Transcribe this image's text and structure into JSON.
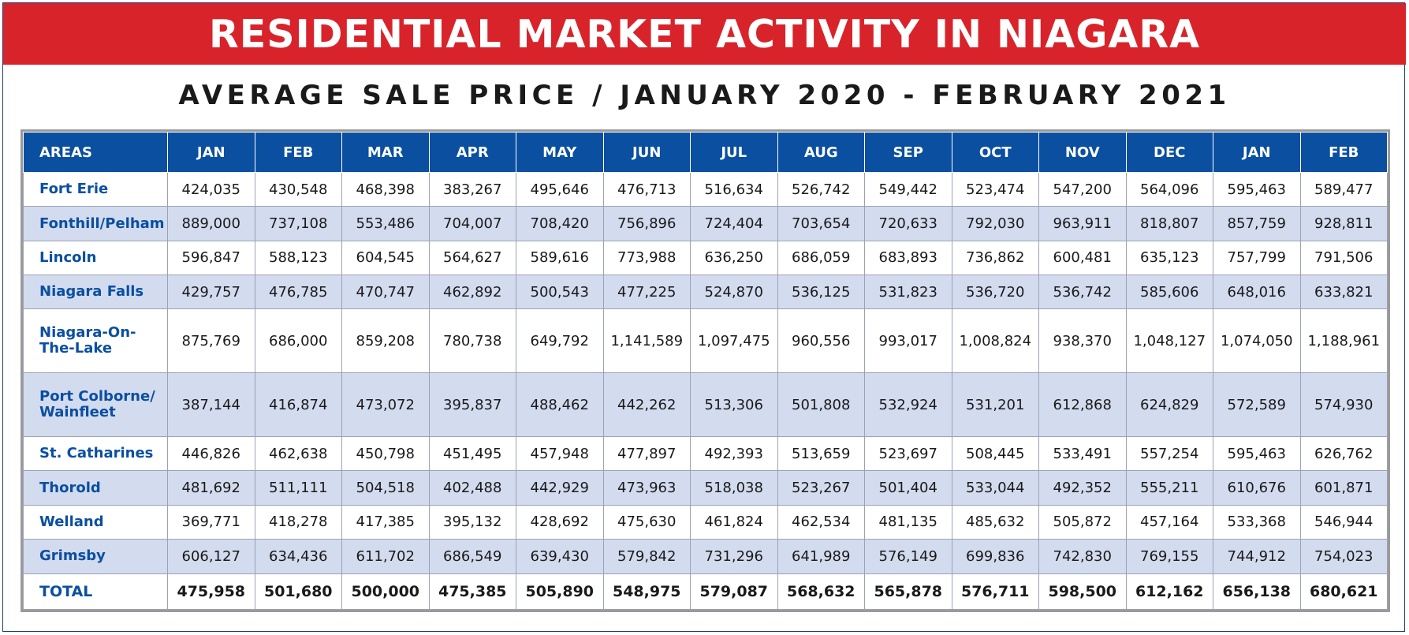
{
  "banner": {
    "title": "RESIDENTIAL MARKET ACTIVITY IN NIAGARA"
  },
  "subtitle": "AVERAGE SALE PRICE / JANUARY 2020 - FEBRUARY 2021",
  "colors": {
    "banner_red": "#d9232a",
    "header_blue": "#0a4fa0",
    "row_shade": "#d3dbef"
  },
  "table": {
    "columns": [
      "AREAS",
      "JAN",
      "FEB",
      "MAR",
      "APR",
      "MAY",
      "JUN",
      "JUL",
      "AUG",
      "SEP",
      "OCT",
      "NOV",
      "DEC",
      "JAN",
      "FEB"
    ],
    "rows": [
      {
        "area": "Fort Erie",
        "values": [
          "424,035",
          "430,548",
          "468,398",
          "383,267",
          "495,646",
          "476,713",
          "516,634",
          "526,742",
          "549,442",
          "523,474",
          "547,200",
          "564,096",
          "595,463",
          "589,477"
        ]
      },
      {
        "area": "Fonthill/Pelham",
        "values": [
          "889,000",
          "737,108",
          "553,486",
          "704,007",
          "708,420",
          "756,896",
          "724,404",
          "703,654",
          "720,633",
          "792,030",
          "963,911",
          "818,807",
          "857,759",
          "928,811"
        ]
      },
      {
        "area": "Lincoln",
        "values": [
          "596,847",
          "588,123",
          "604,545",
          "564,627",
          "589,616",
          "773,988",
          "636,250",
          "686,059",
          "683,893",
          "736,862",
          "600,481",
          "635,123",
          "757,799",
          "791,506"
        ]
      },
      {
        "area": "Niagara Falls",
        "values": [
          "429,757",
          "476,785",
          "470,747",
          "462,892",
          "500,543",
          "477,225",
          "524,870",
          "536,125",
          "531,823",
          "536,720",
          "536,742",
          "585,606",
          "648,016",
          "633,821"
        ]
      },
      {
        "area": "Niagara-On-\nThe-Lake",
        "values": [
          "875,769",
          "686,000",
          "859,208",
          "780,738",
          "649,792",
          "1,141,589",
          "1,097,475",
          "960,556",
          "993,017",
          "1,008,824",
          "938,370",
          "1,048,127",
          "1,074,050",
          "1,188,961"
        ]
      },
      {
        "area": "Port Colborne/\nWainfleet",
        "values": [
          "387,144",
          "416,874",
          "473,072",
          "395,837",
          "488,462",
          "442,262",
          "513,306",
          "501,808",
          "532,924",
          "531,201",
          "612,868",
          "624,829",
          "572,589",
          "574,930"
        ]
      },
      {
        "area": "St. Catharines",
        "values": [
          "446,826",
          "462,638",
          "450,798",
          "451,495",
          "457,948",
          "477,897",
          "492,393",
          "513,659",
          "523,697",
          "508,445",
          "533,491",
          "557,254",
          "595,463",
          "626,762"
        ]
      },
      {
        "area": "Thorold",
        "values": [
          "481,692",
          "511,111",
          "504,518",
          "402,488",
          "442,929",
          "473,963",
          "518,038",
          "523,267",
          "501,404",
          "533,044",
          "492,352",
          "555,211",
          "610,676",
          "601,871"
        ]
      },
      {
        "area": "Welland",
        "values": [
          "369,771",
          "418,278",
          "417,385",
          "395,132",
          "428,692",
          "475,630",
          "461,824",
          "462,534",
          "481,135",
          "485,632",
          "505,872",
          "457,164",
          "533,368",
          "546,944"
        ]
      },
      {
        "area": "Grimsby",
        "values": [
          "606,127",
          "634,436",
          "611,702",
          "686,549",
          "639,430",
          "579,842",
          "731,296",
          "641,989",
          "576,149",
          "699,836",
          "742,830",
          "769,155",
          "744,912",
          "754,023"
        ]
      },
      {
        "area": "TOTAL",
        "values": [
          "475,958",
          "501,680",
          "500,000",
          "475,385",
          "505,890",
          "548,975",
          "579,087",
          "568,632",
          "565,878",
          "576,711",
          "598,500",
          "612,162",
          "656,138",
          "680,621"
        ]
      }
    ]
  }
}
